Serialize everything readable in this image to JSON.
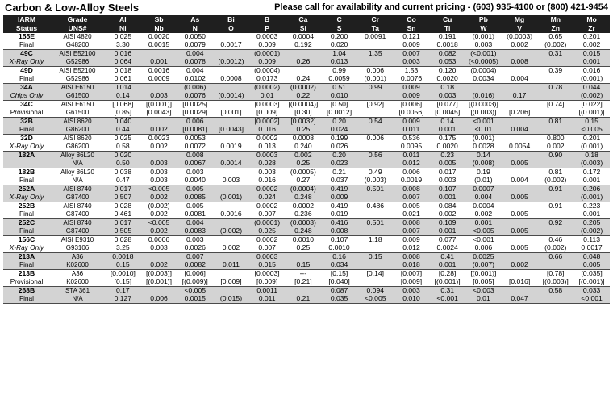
{
  "header": {
    "title": "Carbon & Low-Alloy Steels",
    "contact": "Please call for availability and current pricing - (603) 935-4100 or (800) 421-9454"
  },
  "columns": {
    "row1": [
      "IARM",
      "Grade",
      "Al",
      "Sb",
      "As",
      "Bi",
      "B",
      "Ca",
      "C",
      "Cr",
      "Co",
      "Cu",
      "Pb",
      "Mg",
      "Mn",
      "Mo"
    ],
    "row2": [
      "Status",
      "UNS#",
      "Ni",
      "Nb",
      "N",
      "O",
      "P",
      "Si",
      "S",
      "Ta",
      "Sn",
      "Ti",
      "W",
      "V",
      "Zn",
      "Zr"
    ]
  },
  "rows": [
    {
      "id": "155E",
      "status": "Final",
      "grade": "AISI 4820",
      "uns": "G48200",
      "v1": [
        "0.025",
        "0.0020",
        "0.0050",
        "",
        "0.0003",
        "0.0004",
        "0.200",
        "0.0091",
        "0.121",
        "0.191",
        "(0.001)",
        "(0.0003)",
        "0.65",
        "0.201"
      ],
      "v2": [
        "3.30",
        "0.0015",
        "0.0079",
        "0.0017",
        "0.009",
        "0.192",
        "0.020",
        "",
        "0.009",
        "0.0018",
        "0.003",
        "0.002",
        "(0.002)",
        "0.002"
      ]
    },
    {
      "id": "49C",
      "status": "X-Ray Only",
      "grade": "AISI E52100",
      "uns": "G52986",
      "v1": [
        "0.016",
        "",
        "0.004",
        "",
        "(0.0001)",
        "",
        "1.04",
        "1.35",
        "0.007",
        "0.082",
        "(<0.001)",
        "",
        "0.31",
        "0.015"
      ],
      "v2": [
        "0.064",
        "0.001",
        "0.0078",
        "(0.0012)",
        "0.009",
        "0.26",
        "0.013",
        "",
        "0.003",
        "0.053",
        "(<0.0005)",
        "0.008",
        "",
        "0.001"
      ]
    },
    {
      "id": "49D",
      "status": "Final",
      "grade": "AISI E52100",
      "uns": "G52986",
      "v1": [
        "0.018",
        "0.0016",
        "0.004",
        "",
        "(0.0004)",
        "",
        "0.99",
        "0.006",
        "1.53",
        "0.120",
        "(0.0004)",
        "",
        "0.39",
        "0.016"
      ],
      "v2": [
        "0.061",
        "0.0009",
        "0.0102",
        "0.0008",
        "0.0173",
        "0.24",
        "0.0059",
        "(0.001)",
        "0.0076",
        "0.0020",
        "0.0034",
        "0.004",
        "",
        "(0.001)"
      ]
    },
    {
      "id": "34A",
      "status": "Chips Only",
      "grade": "AISI E6150",
      "uns": "G61500",
      "v1": [
        "0.014",
        "",
        "(0.006)",
        "",
        "(0.0002)",
        "(0.0002)",
        "0.51",
        "0.99",
        "0.009",
        "0.18",
        "",
        "",
        "0.78",
        "0.044"
      ],
      "v2": [
        "0.14",
        "0.003",
        "0.0076",
        "(0.0014)",
        "0.01",
        "0.22",
        "0.010",
        "",
        "0.009",
        "0.003",
        "(0.016)",
        "0.17",
        "",
        "(0.002)"
      ]
    },
    {
      "id": "34C",
      "status": "Provisional",
      "grade": "AISI E6150",
      "uns": "G61500",
      "v1": [
        "[0.068]",
        "[(0.001)]",
        "[0.0025]",
        "",
        "[0.0003]",
        "[(0.0004)]",
        "[0.50]",
        "[0.92]",
        "[0.006]",
        "[0.077]",
        "[(0.0003)]",
        "",
        "[0.74]",
        "[0.022]"
      ],
      "v2": [
        "[0.85]",
        "[0.0043]",
        "[0.0029]",
        "[0.001]",
        "[0.009]",
        "[0.30]",
        "[0.0012]",
        "",
        "[0.0056]",
        "[0.0045]",
        "[(0.003)]",
        "[0.206]",
        "",
        "[(0.001)]"
      ]
    },
    {
      "id": "32B",
      "status": "Final",
      "grade": "AISI 8620",
      "uns": "G86200",
      "v1": [
        "0.040",
        "",
        "0.006",
        "",
        "[0.0002]",
        "[0.0032]",
        "0.20",
        "0.54",
        "0.009",
        "0.14",
        "<0.001",
        "",
        "0.81",
        "0.15"
      ],
      "v2": [
        "0.44",
        "0.002",
        "[0.0081]",
        "[0.0043]",
        "0.016",
        "0.25",
        "0.024",
        "",
        "0.011",
        "0.001",
        "<0.01",
        "0.004",
        "",
        "<0.005"
      ]
    },
    {
      "id": "32D",
      "status": "X-Ray Only",
      "grade": "AISI 8620",
      "uns": "G86200",
      "v1": [
        "0.025",
        "0.0023",
        "0.0053",
        "",
        "0.0002",
        "0.0008",
        "0.199",
        "0.006",
        "0.536",
        "0.175",
        "(0.001)",
        "",
        "0.800",
        "0.201"
      ],
      "v2": [
        "0.58",
        "0.002",
        "0.0072",
        "0.0019",
        "0.013",
        "0.240",
        "0.026",
        "",
        "0.0095",
        "0.0020",
        "0.0028",
        "0.0054",
        "0.002",
        "(0.001)"
      ]
    },
    {
      "id": "182A",
      "status": "",
      "grade": "Alloy 86L20",
      "uns": "N/A",
      "v1": [
        "0.020",
        "",
        "0.008",
        "",
        "0.0003",
        "0.002",
        "0.20",
        "0.56",
        "0.011",
        "0.23",
        "0.14",
        "",
        "0.90",
        "0.18"
      ],
      "v2": [
        "0.50",
        "0.003",
        "0.0067",
        "0.0014",
        "0.028",
        "0.25",
        "0.023",
        "",
        "0.012",
        "0.005",
        "(0.008)",
        "0.005",
        "",
        "(0.003)"
      ]
    },
    {
      "id": "182B",
      "status": "Final",
      "grade": "Alloy 86L20",
      "uns": "N/A",
      "v1": [
        "0.038",
        "0.003",
        "0.003",
        "",
        "0.003",
        "(0.0005)",
        "0.21",
        "0.49",
        "0.006",
        "0.017",
        "0.19",
        "",
        "0.81",
        "0.172"
      ],
      "v2": [
        "0.47",
        "0.003",
        "0.0040",
        "0.003",
        "0.016",
        "0.27",
        "0.037",
        "(0.003)",
        "0.0019",
        "0.003",
        "(0.01)",
        "0.004",
        "(0.002)",
        "0.001"
      ]
    },
    {
      "id": "252A",
      "status": "X-Ray Only",
      "grade": "AISI 8740",
      "uns": "G87400",
      "v1": [
        "0.017",
        "<0.005",
        "0.005",
        "",
        "0.0002",
        "(0.0004)",
        "0.419",
        "0.501",
        "0.008",
        "0.107",
        "0.0007",
        "",
        "0.91",
        "0.206"
      ],
      "v2": [
        "0.507",
        "0.002",
        "0.0085",
        "(0.001)",
        "0.024",
        "0.248",
        "0.009",
        "",
        "0.007",
        "0.001",
        "0.004",
        "0.005",
        "",
        "(0.001)"
      ]
    },
    {
      "id": "252B",
      "status": "Final",
      "grade": "AISI 8740",
      "uns": "G87400",
      "v1": [
        "0.028",
        "(0.002)",
        "0.005",
        "",
        "0.0002",
        "0.0002",
        "0.419",
        "0.486",
        "0.005",
        "0.084",
        "0.0004",
        "",
        "0.91",
        "0.223"
      ],
      "v2": [
        "0.461",
        "0.002",
        "0.0081",
        "0.0016",
        "0.007",
        "0.236",
        "0.019",
        "",
        "0.021",
        "0.002",
        "0.002",
        "0.005",
        "",
        "0.001"
      ]
    },
    {
      "id": "252C",
      "status": "Final",
      "grade": "AISI 8740",
      "uns": "G87400",
      "v1": [
        "0.017",
        "<0.005",
        "0.004",
        "",
        "(0.0001)",
        "(0.0003)",
        "0.416",
        "0.501",
        "0.008",
        "0.109",
        "0.001",
        "",
        "0.92",
        "0.205"
      ],
      "v2": [
        "0.505",
        "0.002",
        "0.0083",
        "(0.002)",
        "0.025",
        "0.248",
        "0.008",
        "",
        "0.007",
        "0.001",
        "<0.005",
        "0.005",
        "",
        "(0.002)"
      ]
    },
    {
      "id": "156C",
      "status": "X-Ray Only",
      "grade": "AISI E9310",
      "uns": "G93106",
      "v1": [
        "0.028",
        "0.0006",
        "0.003",
        "",
        "0.0002",
        "0.0010",
        "0.107",
        "1.18",
        "0.009",
        "0.077",
        "<0.001",
        "",
        "0.46",
        "0.113"
      ],
      "v2": [
        "3.25",
        "0.003",
        "0.0026",
        "0.002",
        "0.007",
        "0.25",
        "0.0010",
        "",
        "0.012",
        "0.0024",
        "0.006",
        "0.005",
        "(0.002)",
        "0.0017"
      ]
    },
    {
      "id": "213A",
      "status": "Final",
      "grade": "A36",
      "uns": "K02600",
      "v1": [
        "0.0018",
        "",
        "0.007",
        "",
        "0.0003",
        "",
        "0.16",
        "0.15",
        "0.008",
        "0.41",
        "0.0025",
        "",
        "0.66",
        "0.048"
      ],
      "v2": [
        "0.15",
        "0.002",
        "0.0082",
        "0.011",
        "0.015",
        "0.15",
        "0.034",
        "",
        "0.018",
        "0.001",
        "(0.007)",
        "0.002",
        "",
        "0.005"
      ]
    },
    {
      "id": "213B",
      "status": "Provisional",
      "grade": "A36",
      "uns": "K02600",
      "v1": [
        "[0.0010]",
        "[(0.003)]",
        "[0.006]",
        "",
        "[0.0003]",
        "---",
        "[0.15]",
        "[0.14]",
        "[0.007]",
        "[0.28]",
        "[(0.001)]",
        "",
        "[0.78]",
        "[0.035]"
      ],
      "v2": [
        "[0.15]",
        "[(0.001)]",
        "[(0.009)]",
        "[0.009]",
        "[0.009]",
        "[0.21]",
        "[0.040]",
        "",
        "[0.009]",
        "[(0.001)]",
        "[0.005]",
        "[0.016]",
        "[(0.003)]",
        "[(0.001)]"
      ]
    },
    {
      "id": "268B",
      "status": "Final",
      "grade": "STA 361",
      "uns": "N/A",
      "v1": [
        "0.17",
        "",
        "<0.005",
        "",
        "0.0011",
        "",
        "0.087",
        "0.094",
        "0.003",
        "0.31",
        "<0.003",
        "",
        "0.58",
        "0.033"
      ],
      "v2": [
        "0.127",
        "0.006",
        "0.0015",
        "(0.015)",
        "0.011",
        "0.21",
        "0.035",
        "<0.005",
        "0.010",
        "<0.001",
        "0.01",
        "0.047",
        "",
        "<0.001"
      ]
    }
  ]
}
